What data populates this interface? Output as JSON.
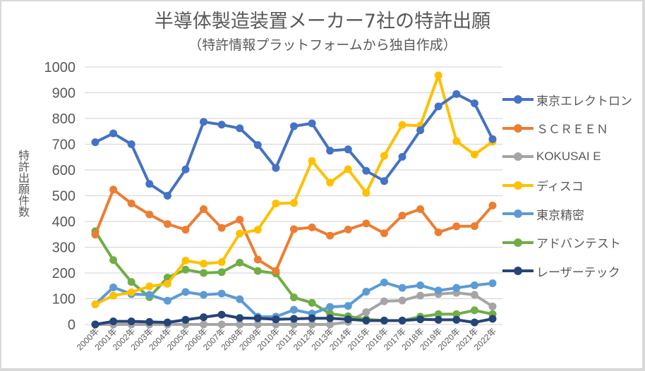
{
  "chart_data": {
    "type": "line",
    "title": "半導体製造装置メーカー7社の特許出願",
    "subtitle": "（特許情報プラットフォームから独自作成）",
    "xlabel": "",
    "ylabel": "特許出願件数",
    "ylim": [
      0,
      1000
    ],
    "yticks": [
      0,
      100,
      200,
      300,
      400,
      500,
      600,
      700,
      800,
      900,
      1000
    ],
    "ytick_labels": [
      "0",
      "100",
      "200",
      "300",
      "400",
      "500",
      "600",
      "700",
      "800",
      "900",
      "1000"
    ],
    "grid": true,
    "legend_position": "right",
    "categories": [
      "2000年",
      "2001年",
      "2002年",
      "2003年",
      "2004年",
      "2005年",
      "2006年",
      "2007年",
      "2008年",
      "2009年",
      "2010年",
      "2011年",
      "2012年",
      "2013年",
      "2014年",
      "2015年",
      "2016年",
      "2017年",
      "2018年",
      "2019年",
      "2020年",
      "2021年",
      "2022年"
    ],
    "series": [
      {
        "name": "東京エレクトロン",
        "color": "#4472c4",
        "values": [
          708,
          742,
          700,
          546,
          500,
          602,
          787,
          776,
          762,
          697,
          608,
          770,
          781,
          675,
          680,
          597,
          557,
          651,
          754,
          847,
          895,
          859,
          720
        ]
      },
      {
        "name": "ＳＣＲＥＥＮ",
        "color": "#ed7d31",
        "values": [
          349,
          524,
          470,
          427,
          390,
          368,
          448,
          375,
          407,
          252,
          208,
          370,
          377,
          345,
          369,
          392,
          354,
          423,
          448,
          358,
          381,
          382,
          462
        ]
      },
      {
        "name": "KOKUSAI E",
        "color": "#a5a5a5",
        "values": [
          0,
          0,
          0,
          0,
          0,
          0,
          0,
          0,
          0,
          0,
          0,
          0,
          0,
          0,
          10,
          48,
          90,
          93,
          112,
          118,
          123,
          115,
          70
        ]
      },
      {
        "name": "ディスコ",
        "color": "#ffc000",
        "values": [
          78,
          112,
          125,
          148,
          158,
          248,
          236,
          242,
          353,
          368,
          470,
          472,
          635,
          551,
          603,
          511,
          655,
          775,
          772,
          967,
          712,
          660,
          710
        ]
      },
      {
        "name": "東京精密",
        "color": "#5b9bd5",
        "values": [
          78,
          144,
          118,
          115,
          92,
          126,
          115,
          120,
          98,
          30,
          30,
          57,
          42,
          68,
          72,
          127,
          163,
          142,
          152,
          132,
          142,
          152,
          160
        ]
      },
      {
        "name": "アドバンテスト",
        "color": "#70ad47",
        "values": [
          362,
          250,
          165,
          106,
          182,
          213,
          200,
          203,
          240,
          208,
          198,
          105,
          84,
          42,
          32,
          20,
          15,
          15,
          30,
          40,
          40,
          55,
          40
        ]
      },
      {
        "name": "レーザーテック",
        "color": "#264478",
        "values": [
          0,
          12,
          12,
          10,
          8,
          18,
          28,
          38,
          25,
          24,
          20,
          22,
          24,
          24,
          20,
          15,
          15,
          15,
          20,
          18,
          18,
          8,
          22
        ]
      }
    ]
  }
}
